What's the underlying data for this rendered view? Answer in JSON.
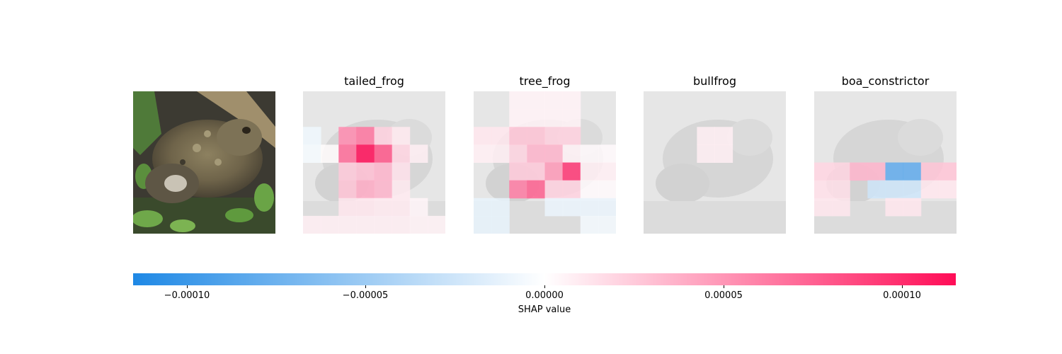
{
  "chart_data": {
    "type": "heatmap",
    "description_labels": [
      "tailed_frog",
      "tree_frog",
      "bullfrog",
      "boa_constrictor"
    ],
    "grid": [
      8,
      8
    ],
    "value_range": [
      -0.000115,
      0.000115
    ],
    "panels": [
      {
        "label": "tailed_frog",
        "values": [
          [
            0,
            0,
            0,
            0,
            0,
            0,
            0,
            0
          ],
          [
            0,
            0,
            0,
            0,
            0,
            0,
            0,
            0
          ],
          [
            -8e-06,
            0,
            5.5e-05,
            6.5e-05,
            2.2e-05,
            1e-05,
            0,
            0
          ],
          [
            -5e-06,
            2e-06,
            7e-05,
            0.000115,
            8e-05,
            2e-05,
            8e-06,
            0
          ],
          [
            0,
            0,
            2.5e-05,
            3e-05,
            3.5e-05,
            1.4e-05,
            0,
            0
          ],
          [
            0,
            0,
            2.8e-05,
            4e-05,
            3.5e-05,
            1e-05,
            0,
            0
          ],
          [
            0,
            0,
            1.2e-05,
            1.2e-05,
            1e-05,
            1e-05,
            5e-06,
            0
          ],
          [
            8e-06,
            8e-06,
            8e-06,
            8e-06,
            8e-06,
            8e-06,
            6e-06,
            6e-06
          ]
        ]
      },
      {
        "label": "tree_frog",
        "values": [
          [
            0,
            0,
            6e-06,
            6e-06,
            6e-06,
            6e-06,
            0,
            0
          ],
          [
            0,
            0,
            6e-06,
            6e-06,
            6e-06,
            6e-06,
            0,
            0
          ],
          [
            1.2e-05,
            1.2e-05,
            2.8e-05,
            2.8e-05,
            2.2e-05,
            2.2e-05,
            0,
            0
          ],
          [
            8e-06,
            8e-06,
            2e-05,
            3.5e-05,
            3.5e-05,
            6e-06,
            3e-06,
            3e-06
          ],
          [
            0,
            0,
            2.5e-05,
            2.5e-05,
            4.8e-05,
            9.5e-05,
            8e-06,
            8e-06
          ],
          [
            0,
            0,
            6.2e-05,
            7.5e-05,
            2.2e-05,
            2.2e-05,
            3e-06,
            3e-06
          ],
          [
            -1.2e-05,
            -1.2e-05,
            0,
            0,
            -1e-05,
            -1e-05,
            -1e-05,
            -1e-05
          ],
          [
            -1.2e-05,
            -1.2e-05,
            0,
            0,
            0,
            0,
            -6e-06,
            -6e-06
          ]
        ]
      },
      {
        "label": "bullfrog",
        "values": [
          [
            0,
            0,
            0,
            0,
            0,
            0,
            0,
            0
          ],
          [
            0,
            0,
            0,
            0,
            0,
            0,
            0,
            0
          ],
          [
            0,
            0,
            0,
            8e-06,
            8e-06,
            0,
            0,
            0
          ],
          [
            0,
            0,
            0,
            8e-06,
            8e-06,
            0,
            0,
            0
          ],
          [
            0,
            0,
            0,
            0,
            0,
            0,
            0,
            0
          ],
          [
            0,
            0,
            0,
            0,
            0,
            0,
            0,
            0
          ],
          [
            0,
            0,
            0,
            0,
            0,
            0,
            0,
            0
          ],
          [
            0,
            0,
            0,
            0,
            0,
            0,
            0,
            0
          ]
        ]
      },
      {
        "label": "boa_constrictor",
        "values": [
          [
            0,
            0,
            0,
            0,
            0,
            0,
            0,
            0
          ],
          [
            0,
            0,
            0,
            0,
            0,
            0,
            0,
            0
          ],
          [
            0,
            0,
            0,
            0,
            0,
            0,
            0,
            0
          ],
          [
            0,
            0,
            0,
            0,
            0,
            0,
            0,
            0
          ],
          [
            2e-05,
            2e-05,
            3.5e-05,
            3.5e-05,
            -8e-05,
            -8e-05,
            2.8e-05,
            2.8e-05
          ],
          [
            1.5e-05,
            1.5e-05,
            0,
            -2.5e-05,
            -2.5e-05,
            -2.5e-05,
            1.2e-05,
            1.2e-05
          ],
          [
            1.2e-05,
            1.2e-05,
            0,
            0,
            1.2e-05,
            1.2e-05,
            0,
            0
          ],
          [
            0,
            0,
            0,
            0,
            0,
            0,
            0,
            0
          ]
        ]
      }
    ],
    "colorbar": {
      "ticks": [
        -0.0001,
        -5e-05,
        0,
        5e-05,
        0.0001
      ],
      "tick_labels": [
        "−0.00010",
        "−0.00005",
        "0.00000",
        "0.00005",
        "0.00010"
      ],
      "label": "SHAP value",
      "colors": {
        "negative": "#1e88e5",
        "positive": "#ff0d57",
        "neutral": "#ffffff"
      }
    }
  }
}
